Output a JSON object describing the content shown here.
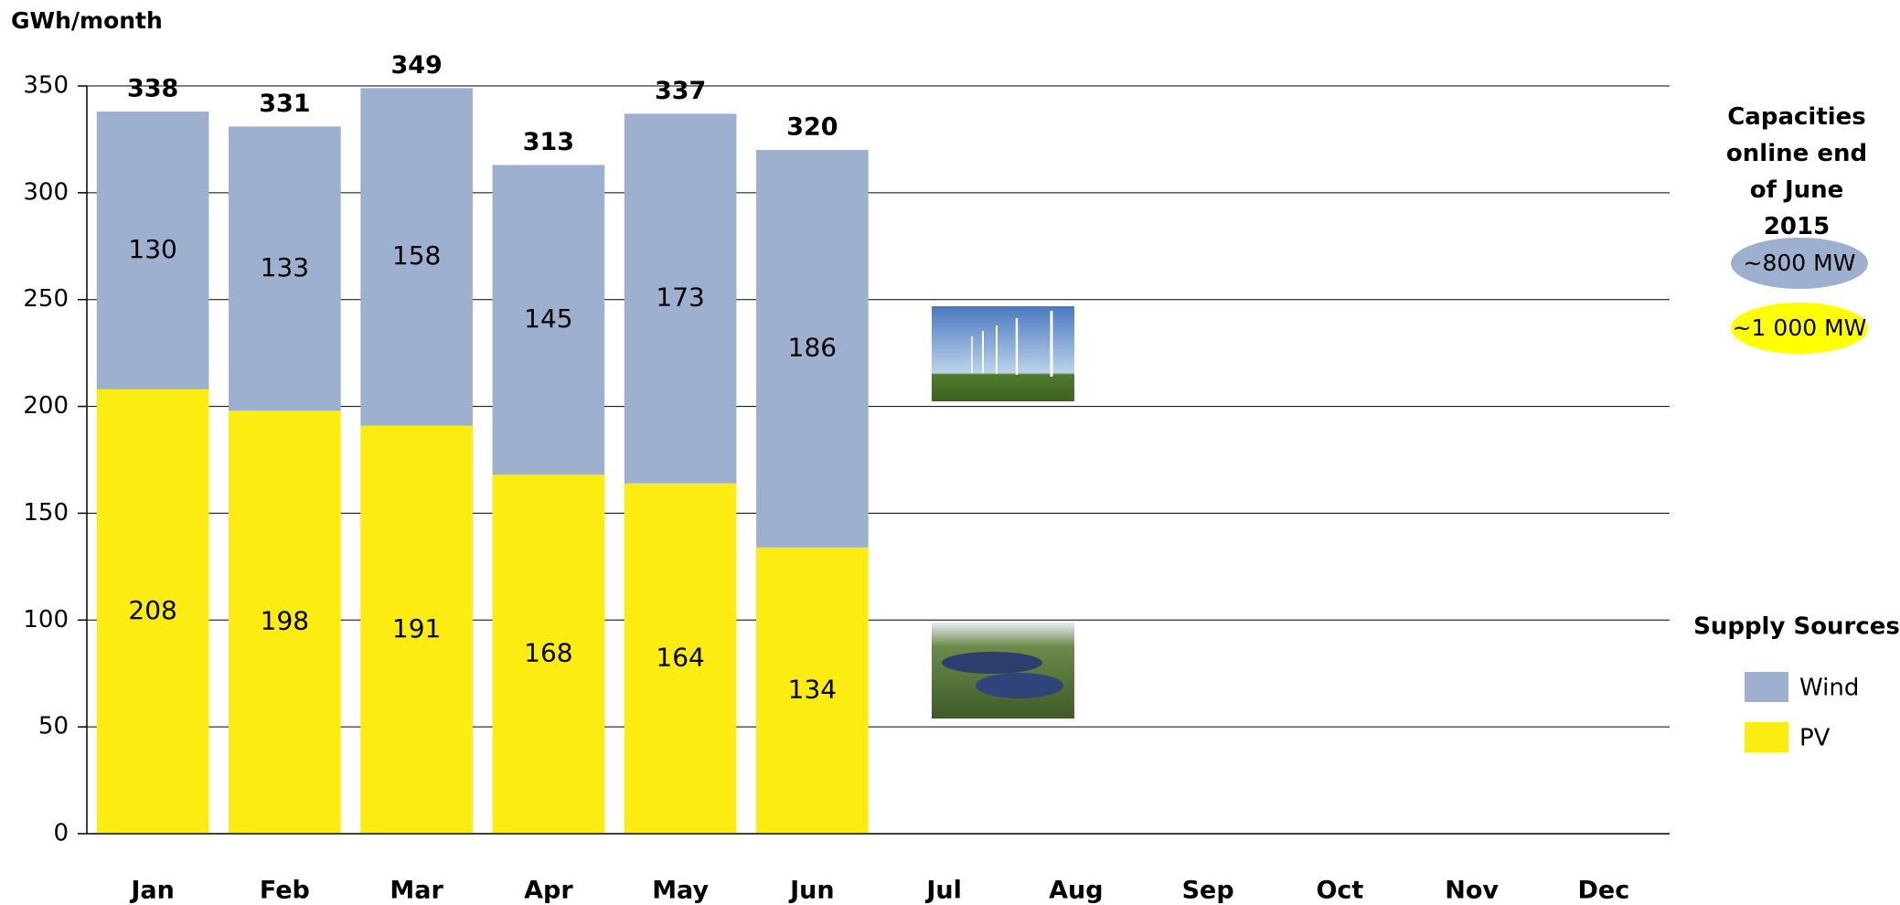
{
  "chart_data": {
    "type": "stacked_bar",
    "y_axis_label": "GWh/month",
    "categories": [
      "Jan",
      "Feb",
      "Mar",
      "Apr",
      "May",
      "Jun",
      "Jul",
      "Aug",
      "Sep",
      "Oct",
      "Nov",
      "Dec"
    ],
    "series": [
      {
        "name": "PV",
        "color": "#fcec12",
        "values": [
          208,
          198,
          191,
          168,
          164,
          134,
          null,
          null,
          null,
          null,
          null,
          null
        ]
      },
      {
        "name": "Wind",
        "color": "#9db0cf",
        "values": [
          130,
          133,
          158,
          145,
          173,
          186,
          null,
          null,
          null,
          null,
          null,
          null
        ]
      }
    ],
    "totals": [
      338,
      331,
      349,
      313,
      337,
      320,
      null,
      null,
      null,
      null,
      null,
      null
    ],
    "ylim": [
      0,
      350
    ],
    "yticks": [
      0,
      50,
      100,
      150,
      200,
      250,
      300,
      350
    ],
    "grid": true,
    "legend_title": "Supply Sources",
    "legend": "right",
    "annotations": {
      "capacities_title": "Capacities online end of June 2015",
      "wind_capacity": "~800 MW",
      "pv_capacity": "~1 000 MW"
    }
  }
}
